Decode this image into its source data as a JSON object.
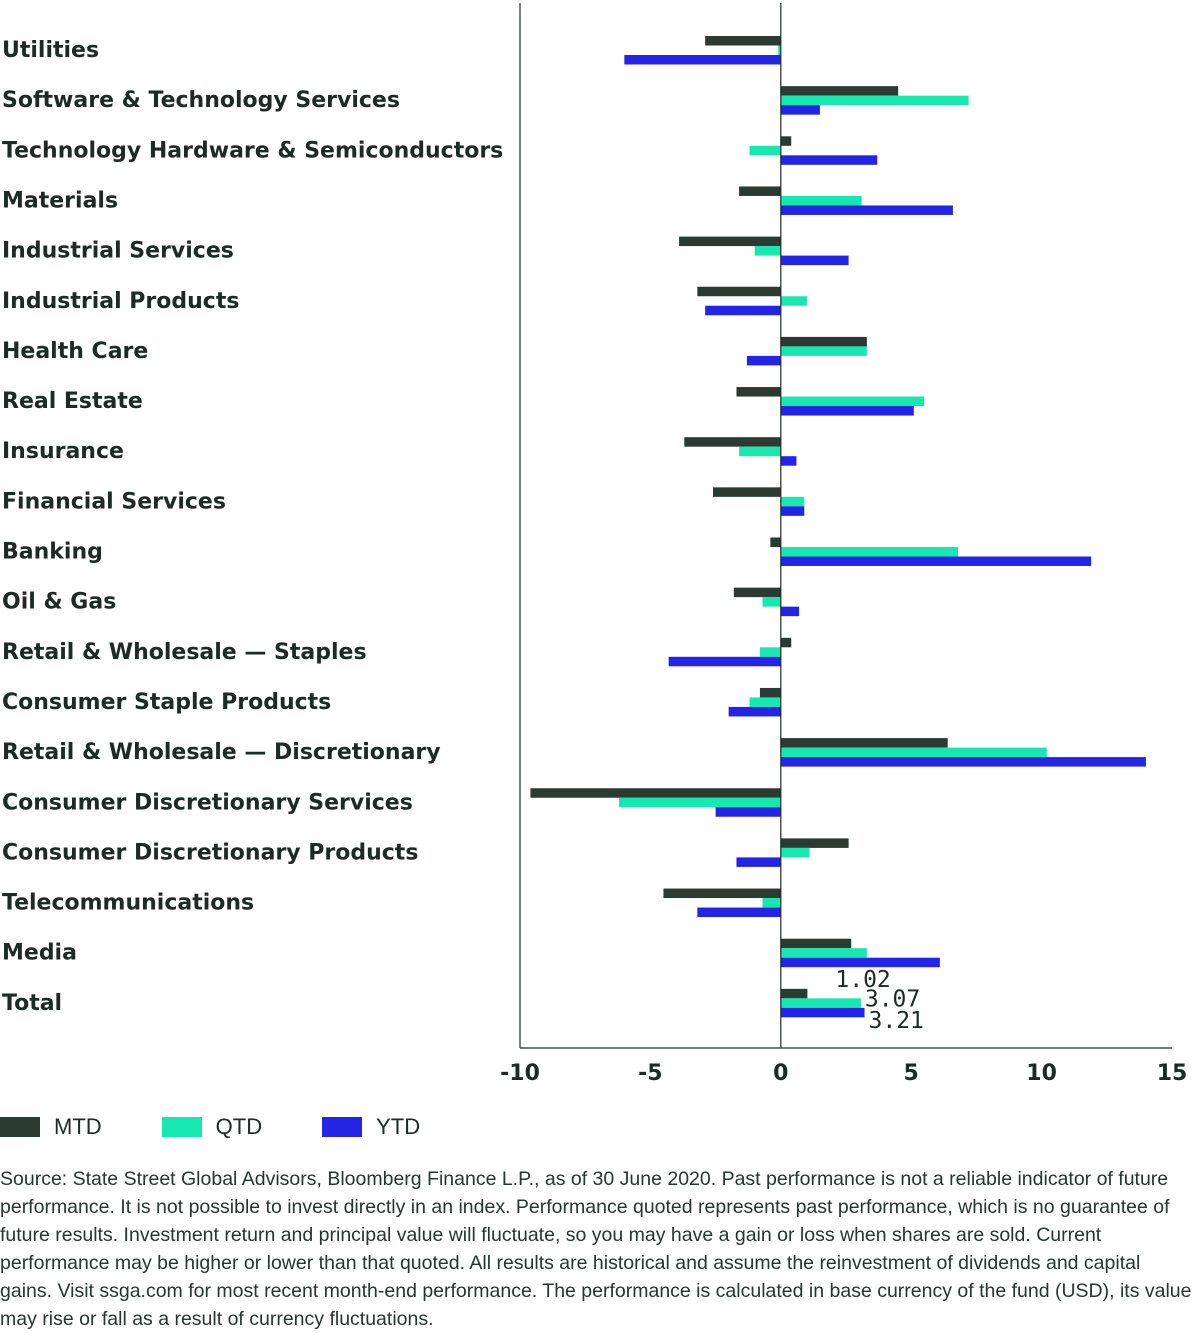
{
  "chart_data": {
    "type": "bar",
    "orientation": "horizontal",
    "categories": [
      "Utilities",
      "Software & Technology Services",
      "Technology Hardware & Semiconductors",
      "Materials",
      "Industrial Services",
      "Industrial Products",
      "Health Care",
      "Real Estate",
      "Insurance",
      "Financial Services",
      "Banking",
      "Oil & Gas",
      "Retail & Wholesale — Staples",
      "Consumer Staple Products",
      "Retail & Wholesale — Discretionary",
      "Consumer Discretionary Services",
      "Consumer Discretionary Products",
      "Telecommunications",
      "Media",
      "Total"
    ],
    "series": [
      {
        "name": "MTD",
        "color": "#2b3a33",
        "values": [
          -2.9,
          4.5,
          0.4,
          -1.6,
          -3.9,
          -3.2,
          3.3,
          -1.7,
          -3.7,
          -2.6,
          -0.4,
          -1.8,
          0.4,
          -0.8,
          6.4,
          -9.6,
          2.6,
          -4.5,
          2.7,
          1.02
        ]
      },
      {
        "name": "QTD",
        "color": "#17e8b0",
        "values": [
          -0.1,
          7.2,
          -1.2,
          3.1,
          -1.0,
          1.0,
          3.3,
          5.5,
          -1.6,
          0.9,
          6.8,
          -0.7,
          -0.8,
          -1.2,
          10.2,
          -6.2,
          1.1,
          -0.7,
          3.3,
          3.07
        ]
      },
      {
        "name": "YTD",
        "color": "#2424e6",
        "values": [
          -6.0,
          1.5,
          3.7,
          6.6,
          2.6,
          -2.9,
          -1.3,
          5.1,
          0.6,
          0.9,
          11.9,
          0.7,
          -4.3,
          -2.0,
          14.0,
          -2.5,
          -1.7,
          -3.2,
          6.1,
          3.21
        ]
      }
    ],
    "data_labels": {
      "MTD": "1.02",
      "QTD": "3.07",
      "YTD": "3.21"
    },
    "xlim": [
      -10,
      15
    ],
    "x_ticks": [
      "-10",
      "-5",
      "0",
      "5",
      "10",
      "15"
    ],
    "title": "",
    "xlabel": "",
    "ylabel": "",
    "legend_position": "bottom-left"
  },
  "legend": {
    "items": [
      {
        "label": "MTD",
        "color": "#2b3a33"
      },
      {
        "label": "QTD",
        "color": "#17e8b0"
      },
      {
        "label": "YTD",
        "color": "#2424e6"
      }
    ]
  },
  "footnote": "Source: State Street Global Advisors, Bloomberg Finance L.P., as of 30 June 2020. Past performance is not a reliable indicator of future performance. It is not possible to invest directly in an index. Performance quoted represents past performance, which is no guarantee of future results. Investment return and principal value will fluctuate, so you may have a gain or loss when shares are sold. Current performance may be higher or lower than that quoted. All results are historical and assume the reinvestment of dividends and capital gains. Visit ssga.com for most recent month-end performance. The performance is calculated in base currency of the fund (USD), its value may rise or fall as a result of currency fluctuations."
}
